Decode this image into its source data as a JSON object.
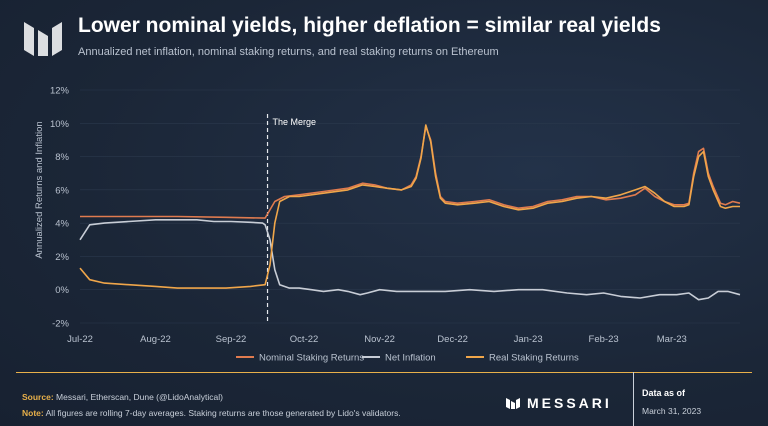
{
  "header": {
    "title": "Lower nominal yields, higher deflation = similar real yields",
    "subtitle": "Annualized net inflation, nominal staking returns, and real staking returns on Ethereum"
  },
  "footer": {
    "source_label": "Source:",
    "source_text": "Messari, Etherscan, Dune (@LidoAnalytical)",
    "note_label": "Note:",
    "note_text": "All figures are rolling 7-day averages. Staking returns are those generated by Lido's validators.",
    "brand": "MESSARI",
    "data_as_of_label": "Data as of",
    "data_as_of_date": "March 31, 2023"
  },
  "colors": {
    "nominal": "#e07b4f",
    "inflation": "#c8cdd6",
    "real": "#f0a64a",
    "accent": "#e8b04a",
    "text_muted": "#b9c2cf"
  },
  "chart_data": {
    "type": "line",
    "title": "Lower nominal yields, higher deflation = similar real yields",
    "xlabel": "",
    "ylabel": "Annualized Returns and Inflation",
    "ylim": [
      -2,
      12
    ],
    "xlim": [
      0,
      271
    ],
    "yticks": [
      -2,
      0,
      2,
      4,
      6,
      8,
      10,
      12
    ],
    "ytick_labels": [
      "-2%",
      "0%",
      "2%",
      "4%",
      "6%",
      "8%",
      "10%",
      "12%"
    ],
    "xticks": [
      0,
      31,
      62,
      92,
      123,
      153,
      184,
      215,
      243
    ],
    "xtick_labels": [
      "Jul-22",
      "Aug-22",
      "Sep-22",
      "Oct-22",
      "Nov-22",
      "Dec-22",
      "Jan-23",
      "Feb-23",
      "Mar-23"
    ],
    "annotation": {
      "x": 77,
      "label": "The Merge"
    },
    "legend": "bottom",
    "series": [
      {
        "name": "Nominal Staking Returns",
        "color": "#e07b4f",
        "points": [
          [
            0,
            4.4
          ],
          [
            20,
            4.4
          ],
          [
            40,
            4.4
          ],
          [
            60,
            4.35
          ],
          [
            76,
            4.3
          ],
          [
            80,
            5.3
          ],
          [
            84,
            5.6
          ],
          [
            90,
            5.7
          ],
          [
            100,
            5.9
          ],
          [
            110,
            6.1
          ],
          [
            116,
            6.4
          ],
          [
            121,
            6.3
          ],
          [
            126,
            6.1
          ],
          [
            132,
            6.0
          ],
          [
            136,
            6.3
          ],
          [
            138,
            6.8
          ],
          [
            140,
            8.0
          ],
          [
            142,
            9.8
          ],
          [
            144,
            9.0
          ],
          [
            146,
            7.0
          ],
          [
            148,
            5.6
          ],
          [
            150,
            5.3
          ],
          [
            155,
            5.2
          ],
          [
            162,
            5.3
          ],
          [
            168,
            5.4
          ],
          [
            174,
            5.1
          ],
          [
            180,
            4.9
          ],
          [
            186,
            5.0
          ],
          [
            192,
            5.3
          ],
          [
            198,
            5.4
          ],
          [
            204,
            5.6
          ],
          [
            210,
            5.6
          ],
          [
            216,
            5.4
          ],
          [
            222,
            5.5
          ],
          [
            228,
            5.7
          ],
          [
            232,
            6.1
          ],
          [
            236,
            5.6
          ],
          [
            240,
            5.3
          ],
          [
            244,
            5.1
          ],
          [
            248,
            5.1
          ],
          [
            250,
            5.2
          ],
          [
            252,
            7.0
          ],
          [
            254,
            8.3
          ],
          [
            256,
            8.5
          ],
          [
            258,
            7.0
          ],
          [
            260,
            6.2
          ],
          [
            263,
            5.2
          ],
          [
            265,
            5.1
          ],
          [
            268,
            5.3
          ],
          [
            271,
            5.2
          ]
        ]
      },
      {
        "name": "Net Inflation",
        "color": "#c8cdd6",
        "points": [
          [
            0,
            3.0
          ],
          [
            4,
            3.9
          ],
          [
            10,
            4.0
          ],
          [
            20,
            4.1
          ],
          [
            31,
            4.2
          ],
          [
            40,
            4.2
          ],
          [
            48,
            4.2
          ],
          [
            55,
            4.1
          ],
          [
            62,
            4.1
          ],
          [
            70,
            4.05
          ],
          [
            75,
            4.0
          ],
          [
            76,
            3.9
          ],
          [
            78,
            3.0
          ],
          [
            80,
            1.2
          ],
          [
            82,
            0.3
          ],
          [
            86,
            0.1
          ],
          [
            90,
            0.1
          ],
          [
            95,
            0.0
          ],
          [
            100,
            -0.1
          ],
          [
            106,
            0.0
          ],
          [
            110,
            -0.1
          ],
          [
            115,
            -0.3
          ],
          [
            118,
            -0.2
          ],
          [
            123,
            0.0
          ],
          [
            130,
            -0.1
          ],
          [
            140,
            -0.1
          ],
          [
            150,
            -0.1
          ],
          [
            160,
            0.0
          ],
          [
            170,
            -0.1
          ],
          [
            180,
            0.0
          ],
          [
            190,
            0.0
          ],
          [
            200,
            -0.2
          ],
          [
            208,
            -0.3
          ],
          [
            215,
            -0.2
          ],
          [
            222,
            -0.4
          ],
          [
            230,
            -0.5
          ],
          [
            238,
            -0.3
          ],
          [
            245,
            -0.3
          ],
          [
            250,
            -0.2
          ],
          [
            254,
            -0.6
          ],
          [
            258,
            -0.5
          ],
          [
            262,
            -0.1
          ],
          [
            266,
            -0.1
          ],
          [
            271,
            -0.3
          ]
        ]
      },
      {
        "name": "Real Staking Returns",
        "color": "#f0a64a",
        "points": [
          [
            0,
            1.3
          ],
          [
            4,
            0.6
          ],
          [
            10,
            0.4
          ],
          [
            20,
            0.3
          ],
          [
            31,
            0.2
          ],
          [
            40,
            0.1
          ],
          [
            50,
            0.1
          ],
          [
            60,
            0.1
          ],
          [
            70,
            0.2
          ],
          [
            76,
            0.3
          ],
          [
            78,
            1.5
          ],
          [
            80,
            4.0
          ],
          [
            82,
            5.3
          ],
          [
            86,
            5.6
          ],
          [
            90,
            5.6
          ],
          [
            100,
            5.8
          ],
          [
            110,
            6.0
          ],
          [
            116,
            6.3
          ],
          [
            121,
            6.2
          ],
          [
            126,
            6.1
          ],
          [
            132,
            6.0
          ],
          [
            136,
            6.2
          ],
          [
            138,
            6.7
          ],
          [
            140,
            7.9
          ],
          [
            142,
            9.9
          ],
          [
            144,
            8.9
          ],
          [
            146,
            6.8
          ],
          [
            148,
            5.5
          ],
          [
            150,
            5.2
          ],
          [
            155,
            5.1
          ],
          [
            162,
            5.2
          ],
          [
            168,
            5.3
          ],
          [
            174,
            5.0
          ],
          [
            180,
            4.8
          ],
          [
            186,
            4.9
          ],
          [
            192,
            5.2
          ],
          [
            198,
            5.3
          ],
          [
            204,
            5.5
          ],
          [
            210,
            5.6
          ],
          [
            216,
            5.5
          ],
          [
            222,
            5.7
          ],
          [
            228,
            6.0
          ],
          [
            232,
            6.2
          ],
          [
            236,
            5.8
          ],
          [
            240,
            5.3
          ],
          [
            244,
            5.0
          ],
          [
            248,
            5.0
          ],
          [
            250,
            5.1
          ],
          [
            252,
            6.8
          ],
          [
            254,
            8.0
          ],
          [
            256,
            8.3
          ],
          [
            258,
            6.8
          ],
          [
            260,
            6.0
          ],
          [
            263,
            5.0
          ],
          [
            265,
            4.9
          ],
          [
            268,
            5.0
          ],
          [
            271,
            5.0
          ]
        ]
      }
    ]
  }
}
